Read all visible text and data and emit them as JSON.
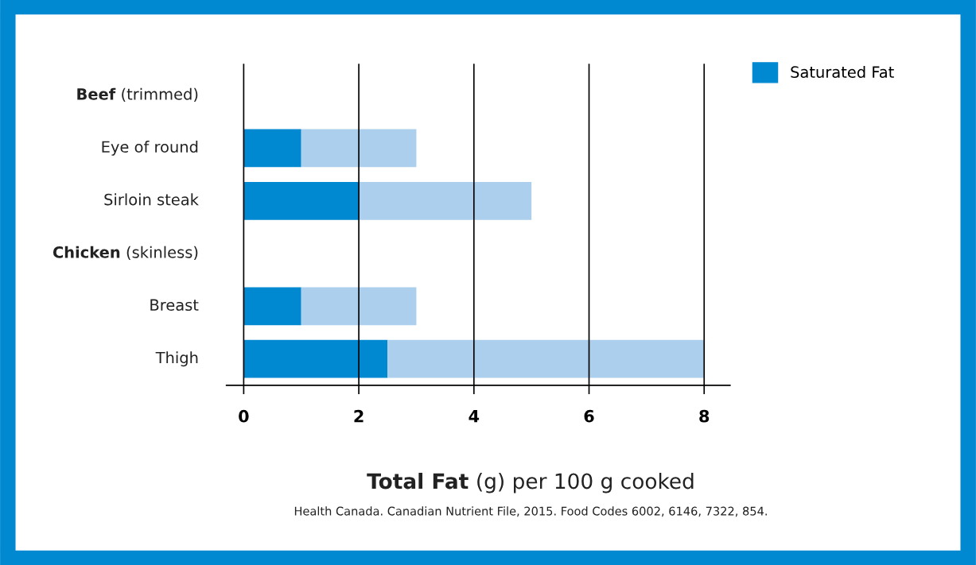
{
  "chart_data": {
    "type": "bar",
    "orientation": "horizontal",
    "stacked": true,
    "categories": [
      "Beef (trimmed)",
      "Eye of round",
      "Sirloin steak",
      "Chicken (skinless)",
      "Breast",
      "Thigh"
    ],
    "series": [
      {
        "name": "Saturated Fat",
        "color": "#0088d1",
        "values": [
          null,
          1,
          2,
          null,
          1,
          2.5
        ]
      },
      {
        "color": "#abcfec",
        "values": [
          null,
          2,
          3,
          null,
          2,
          5.5
        ]
      }
    ],
    "xlabel": "Total Fat (g) per 100 g cooked",
    "xlim": [
      -0.3,
      8.45
    ],
    "xticks": [
      0,
      2,
      4,
      6,
      8
    ],
    "grid": "x",
    "legend": "top right",
    "annotations": [
      "Health Canada. Canadian Nutrient File, 2015. Food Codes 6002, 6146, 7322, 854."
    ]
  }
}
